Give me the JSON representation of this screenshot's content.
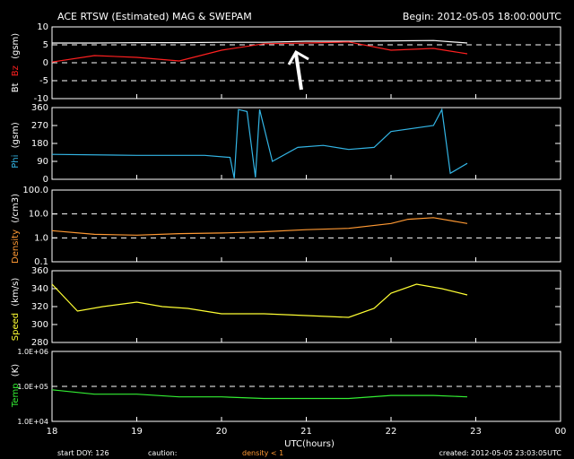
{
  "header": {
    "title": "ACE RTSW (Estimated) MAG & SWEPAM",
    "begin": "Begin: 2012-05-05 18:00:00UTC"
  },
  "footer": {
    "start_doy": "start DOY: 126",
    "caution": "caution:",
    "density_note": "density < 1",
    "created": "created: 2012-05-05 23:03:05UTC",
    "xlabel": "UTC(hours)"
  },
  "colors": {
    "bt": "#ffffff",
    "bz": "#ff2020",
    "phi": "#33b5e5",
    "density": "#ff9933",
    "speed": "#ffff33",
    "temp": "#33ee33",
    "axis": "#ffffff",
    "background": "#000000"
  },
  "chart_data": [
    {
      "type": "line",
      "panel": "mag",
      "ylabel_parts": [
        "Bt",
        "Bz",
        "(gsm)"
      ],
      "ylim": [
        -10,
        10
      ],
      "yticks": [
        "10",
        "5",
        "0",
        "-5",
        "-10"
      ],
      "x_hours": [
        18.0,
        18.5,
        19.0,
        19.5,
        20.0,
        20.5,
        21.0,
        21.5,
        22.0,
        22.5,
        22.9
      ],
      "series": [
        {
          "name": "Bt",
          "values": [
            5.5,
            5.5,
            5.6,
            5.6,
            5.7,
            5.7,
            6.0,
            6.0,
            6.1,
            6.2,
            5.5
          ]
        },
        {
          "name": "Bz",
          "values": [
            0.2,
            2.0,
            1.5,
            0.5,
            3.5,
            5.3,
            5.5,
            5.8,
            3.5,
            4.0,
            2.5
          ]
        }
      ],
      "annotation": "arrow near 20.7 h"
    },
    {
      "type": "line",
      "panel": "phi",
      "ylabel_parts": [
        "Phi",
        "(gsm)"
      ],
      "ylim": [
        0,
        360
      ],
      "yticks": [
        "360",
        "270",
        "180",
        "90",
        "0"
      ],
      "x_hours": [
        18.0,
        19.0,
        19.8,
        20.1,
        20.15,
        20.2,
        20.3,
        20.4,
        20.45,
        20.6,
        20.9,
        21.2,
        21.5,
        21.8,
        22.0,
        22.5,
        22.6,
        22.7,
        22.9
      ],
      "series": [
        {
          "name": "Phi",
          "values": [
            125,
            120,
            120,
            110,
            5,
            350,
            340,
            10,
            350,
            90,
            160,
            170,
            150,
            160,
            240,
            270,
            350,
            30,
            80
          ]
        }
      ]
    },
    {
      "type": "line",
      "panel": "density",
      "ylabel_parts": [
        "Density",
        "(/cm3)"
      ],
      "yscale": "log",
      "ylim": [
        0.1,
        100
      ],
      "yticks": [
        "100.0",
        "10.0",
        "1.0",
        "0.1"
      ],
      "x_hours": [
        18.0,
        18.5,
        19.0,
        19.5,
        20.0,
        20.5,
        21.0,
        21.5,
        22.0,
        22.2,
        22.5,
        22.9
      ],
      "series": [
        {
          "name": "Density",
          "values": [
            2.0,
            1.4,
            1.3,
            1.5,
            1.6,
            1.8,
            2.2,
            2.5,
            4.0,
            6.0,
            7.0,
            4.0
          ]
        }
      ]
    },
    {
      "type": "line",
      "panel": "speed",
      "ylabel_parts": [
        "Speed",
        "(km/s)"
      ],
      "ylim": [
        280,
        360
      ],
      "yticks": [
        "360",
        "340",
        "320",
        "300",
        "280"
      ],
      "x_hours": [
        18.0,
        18.3,
        18.6,
        19.0,
        19.3,
        19.6,
        20.0,
        20.5,
        21.0,
        21.5,
        21.8,
        22.0,
        22.3,
        22.6,
        22.9
      ],
      "series": [
        {
          "name": "Speed",
          "values": [
            345,
            315,
            320,
            325,
            320,
            318,
            312,
            312,
            310,
            308,
            318,
            335,
            345,
            340,
            333
          ]
        }
      ]
    },
    {
      "type": "line",
      "panel": "temp",
      "ylabel_parts": [
        "Temp",
        "(K)"
      ],
      "yscale": "log",
      "ylim": [
        10000,
        1000000
      ],
      "yticks": [
        "1.0E+06",
        "1.0E+05",
        "1.0E+04"
      ],
      "x_hours": [
        18.0,
        18.5,
        19.0,
        19.5,
        20.0,
        20.5,
        21.0,
        21.5,
        22.0,
        22.5,
        22.9
      ],
      "series": [
        {
          "name": "Temp",
          "values": [
            80000,
            60000,
            60000,
            50000,
            50000,
            45000,
            45000,
            45000,
            55000,
            55000,
            50000
          ]
        }
      ]
    }
  ],
  "xaxis": {
    "ticks": [
      "18",
      "19",
      "20",
      "21",
      "22",
      "23",
      "00"
    ],
    "xlim_hours": [
      18,
      24
    ]
  }
}
